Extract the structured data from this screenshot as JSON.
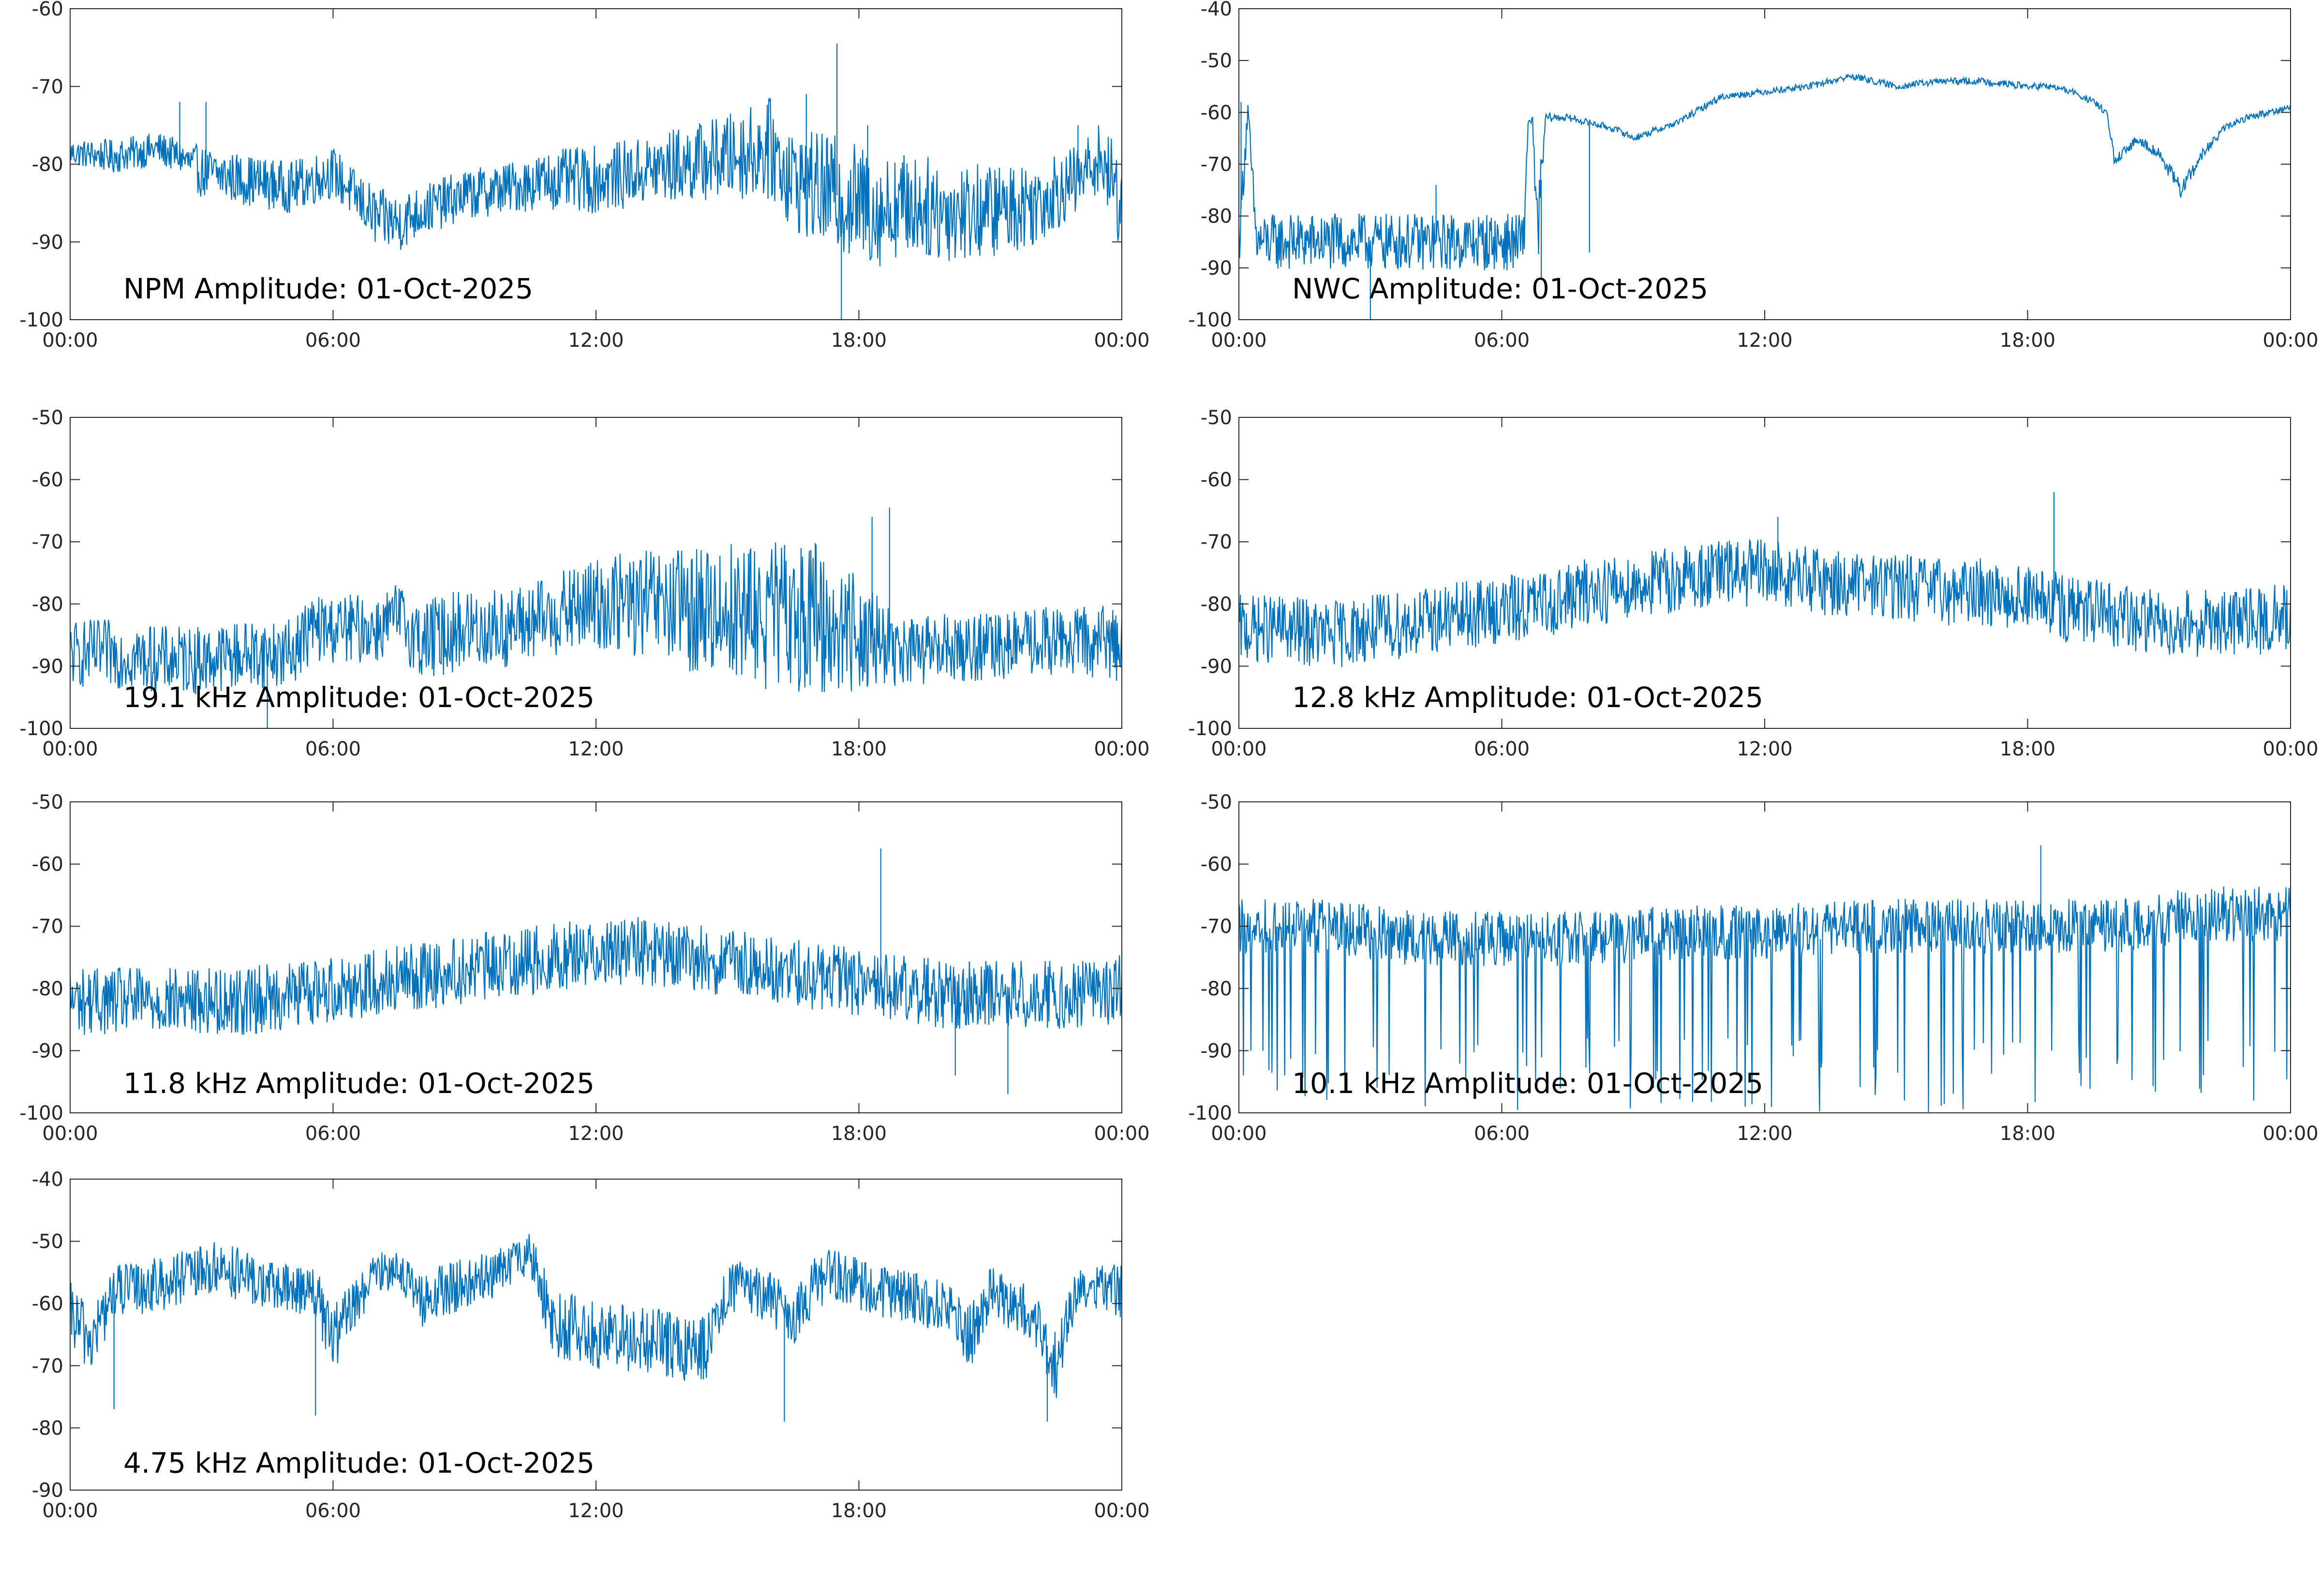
{
  "figure": {
    "date": "01-Oct-2025",
    "line_color": "#0072bd",
    "axis_color": "#262626"
  },
  "chart_data": [
    {
      "type": "line",
      "title": "NPM Amplitude: 01-Oct-2025",
      "xlabel": "",
      "ylabel": "",
      "xlim": [
        0,
        24
      ],
      "ylim": [
        -100,
        -60
      ],
      "yticks": [
        -100,
        -90,
        -80,
        -70,
        -60
      ],
      "xtick_labels": [
        "00:00",
        "06:00",
        "12:00",
        "18:00",
        "00:00"
      ],
      "grid": false,
      "series": [
        {
          "name": "NPM",
          "envelope_hours": [
            0,
            1,
            2,
            2.5,
            3,
            4,
            5,
            6,
            6.5,
            7,
            7.5,
            8,
            9,
            10,
            11,
            12,
            13,
            14,
            15,
            16,
            16.5,
            17,
            17.5,
            18,
            18.5,
            19,
            20,
            21,
            22,
            23,
            23.5,
            24
          ],
          "center": [
            -78.5,
            -79,
            -78,
            -79,
            -81,
            -82,
            -83,
            -81,
            -84,
            -87,
            -87.5,
            -86,
            -84,
            -83,
            -82,
            -82,
            -81,
            -80,
            -79,
            -78,
            -82,
            -83,
            -84,
            -85,
            -86,
            -85,
            -86,
            -86,
            -85,
            -82,
            -79,
            -85
          ],
          "spread": [
            1.5,
            2,
            2,
            2,
            3,
            3,
            3,
            3,
            3,
            3.5,
            3.5,
            3,
            3,
            3,
            3.5,
            4,
            4,
            4.5,
            5,
            6,
            6,
            6.5,
            7,
            7,
            6.5,
            6,
            6,
            5.5,
            5,
            4,
            4,
            6
          ],
          "spikes": [
            [
              2.5,
              -72
            ],
            [
              3.1,
              -72
            ],
            [
              17.5,
              -64.5
            ],
            [
              17.6,
              -100
            ],
            [
              18.2,
              -75
            ],
            [
              16.8,
              -71
            ],
            [
              23.0,
              -75
            ]
          ]
        }
      ]
    },
    {
      "type": "line",
      "title": "NWC Amplitude: 01-Oct-2025",
      "xlabel": "",
      "ylabel": "",
      "xlim": [
        0,
        24
      ],
      "ylim": [
        -100,
        -40
      ],
      "yticks": [
        -100,
        -90,
        -80,
        -70,
        -60,
        -50,
        -40
      ],
      "xtick_labels": [
        "00:00",
        "06:00",
        "12:00",
        "18:00",
        "00:00"
      ],
      "grid": false,
      "series": [
        {
          "name": "NWC",
          "envelope_hours": [
            0,
            0.2,
            0.4,
            1,
            2,
            3,
            4,
            5,
            6,
            6.5,
            6.6,
            6.7,
            6.8,
            7,
            7.5,
            8,
            8.5,
            8.8,
            9,
            10,
            11,
            12,
            13,
            14,
            15,
            16,
            17,
            18,
            18.5,
            19,
            19.5,
            19.8,
            20,
            20.5,
            21,
            21.5,
            22,
            22.5,
            23,
            24
          ],
          "center": [
            -85,
            -60,
            -85,
            -85,
            -85,
            -85,
            -85,
            -85,
            -85,
            -85,
            -62,
            -61,
            -85,
            -61,
            -61,
            -62,
            -63,
            -64,
            -65,
            -62,
            -57,
            -56,
            -55,
            -53,
            -55,
            -54,
            -54,
            -55,
            -55,
            -56,
            -58,
            -60,
            -70,
            -65,
            -68,
            -75,
            -68,
            -63,
            -61,
            -59
          ],
          "spread": [
            5,
            3,
            5,
            5,
            5,
            5,
            5,
            5,
            5,
            5,
            1,
            1,
            8,
            0.8,
            0.6,
            0.6,
            0.6,
            0.6,
            0.6,
            0.6,
            0.6,
            0.6,
            0.6,
            0.6,
            0.6,
            0.6,
            0.6,
            0.6,
            0.6,
            0.6,
            0.6,
            0.6,
            1.5,
            0.8,
            1,
            1.5,
            1,
            0.6,
            0.6,
            0.6
          ],
          "spikes": [
            [
              0.05,
              -58
            ],
            [
              4.5,
              -74
            ],
            [
              6.9,
              -92
            ],
            [
              8.0,
              -87
            ],
            [
              3.0,
              -100
            ]
          ]
        }
      ]
    },
    {
      "type": "line",
      "title": "19.1 kHz Amplitude: 01-Oct-2025",
      "xlabel": "",
      "ylabel": "",
      "xlim": [
        0,
        24
      ],
      "ylim": [
        -100,
        -50
      ],
      "yticks": [
        -100,
        -90,
        -80,
        -70,
        -60,
        -50
      ],
      "xtick_labels": [
        "00:00",
        "06:00",
        "12:00",
        "18:00",
        "00:00"
      ],
      "grid": false,
      "series": [
        {
          "name": "19.1 kHz",
          "envelope_hours": [
            0,
            1,
            2,
            3,
            4,
            5,
            5.5,
            6,
            7,
            7.5,
            8,
            9,
            10,
            11,
            12,
            13,
            14,
            15,
            16,
            17,
            17.5,
            18,
            18.5,
            19,
            20,
            21,
            22,
            23,
            24
          ],
          "center": [
            -88,
            -88,
            -89,
            -89,
            -88,
            -88,
            -84,
            -84,
            -84,
            -82,
            -86,
            -84,
            -84,
            -82,
            -80,
            -80,
            -81,
            -81,
            -82,
            -82,
            -84,
            -84,
            -86,
            -88,
            -87,
            -87,
            -86,
            -86,
            -86
          ],
          "spread": [
            5,
            5,
            5,
            5,
            5,
            5,
            5,
            5,
            5,
            5,
            6,
            6,
            6,
            6,
            7,
            8,
            9,
            10,
            11,
            11,
            10,
            9,
            6,
            5,
            5,
            5,
            5,
            5,
            6
          ],
          "spikes": [
            [
              18.7,
              -64.5
            ],
            [
              18.3,
              -66
            ],
            [
              4.5,
              -100
            ]
          ]
        }
      ]
    },
    {
      "type": "line",
      "title": "12.8 kHz Amplitude: 01-Oct-2025",
      "xlabel": "",
      "ylabel": "",
      "xlim": [
        0,
        24
      ],
      "ylim": [
        -100,
        -50
      ],
      "yticks": [
        -100,
        -90,
        -80,
        -70,
        -60,
        -50
      ],
      "xtick_labels": [
        "00:00",
        "06:00",
        "12:00",
        "18:00",
        "00:00"
      ],
      "grid": false,
      "series": [
        {
          "name": "12.8 kHz",
          "envelope_hours": [
            0,
            1,
            2,
            3,
            4,
            5,
            6,
            7,
            8,
            9,
            10,
            11,
            12,
            13,
            14,
            15,
            16,
            17,
            18,
            19,
            20,
            21,
            22,
            23,
            24
          ],
          "center": [
            -84,
            -84,
            -85,
            -84,
            -83,
            -82,
            -81,
            -80,
            -78,
            -77,
            -76,
            -75,
            -75,
            -76,
            -77,
            -77,
            -78,
            -78,
            -79,
            -81,
            -82,
            -83,
            -83,
            -83,
            -82
          ],
          "spread": [
            5,
            5,
            5,
            5,
            5,
            5,
            5,
            5,
            5,
            5,
            5,
            5,
            5,
            5,
            5,
            5,
            5,
            5,
            5,
            5,
            5,
            5,
            5,
            5,
            5
          ],
          "spikes": [
            [
              18.6,
              -62
            ],
            [
              12.3,
              -66
            ]
          ]
        }
      ]
    },
    {
      "type": "line",
      "title": "11.8 kHz Amplitude: 01-Oct-2025",
      "xlabel": "",
      "ylabel": "",
      "xlim": [
        0,
        24
      ],
      "ylim": [
        -100,
        -50
      ],
      "yticks": [
        -100,
        -90,
        -80,
        -70,
        -60,
        -50
      ],
      "xtick_labels": [
        "00:00",
        "06:00",
        "12:00",
        "18:00",
        "00:00"
      ],
      "grid": false,
      "series": [
        {
          "name": "11.8 kHz",
          "envelope_hours": [
            0,
            1,
            2,
            3,
            4,
            5,
            6,
            7,
            8,
            9,
            10,
            11,
            12,
            13,
            14,
            15,
            16,
            17,
            18,
            19,
            20,
            21,
            22,
            23,
            24
          ],
          "center": [
            -82,
            -82,
            -82,
            -82,
            -82,
            -81,
            -80,
            -79,
            -78,
            -77,
            -76,
            -75,
            -74,
            -74,
            -75,
            -76,
            -77,
            -78,
            -79,
            -80,
            -81,
            -81,
            -81,
            -81,
            -80
          ],
          "spread": [
            5,
            5,
            5,
            5,
            5,
            5,
            5,
            5,
            5,
            5,
            5,
            5,
            5,
            5,
            5,
            5,
            5,
            5,
            5,
            5,
            5,
            5,
            5,
            5,
            5
          ],
          "spikes": [
            [
              18.5,
              -57.5
            ],
            [
              20.2,
              -94
            ],
            [
              21.4,
              -97
            ]
          ]
        }
      ]
    },
    {
      "type": "line",
      "title": "10.1 kHz Amplitude: 01-Oct-2025",
      "xlabel": "",
      "ylabel": "",
      "xlim": [
        0,
        24
      ],
      "ylim": [
        -100,
        -50
      ],
      "yticks": [
        -100,
        -90,
        -80,
        -70,
        -60,
        -50
      ],
      "xtick_labels": [
        "00:00",
        "06:00",
        "12:00",
        "18:00",
        "00:00"
      ],
      "grid": false,
      "series": [
        {
          "name": "10.1 kHz",
          "envelope_hours": [
            0,
            2,
            4,
            6,
            8,
            10,
            12,
            14,
            16,
            18,
            20,
            22,
            24
          ],
          "center": [
            -70,
            -70,
            -72,
            -72,
            -72,
            -71,
            -71,
            -70,
            -70,
            -70,
            -70,
            -68,
            -68
          ],
          "spread": [
            4,
            4,
            4,
            4,
            4,
            4,
            4,
            4,
            4,
            4,
            4,
            4,
            4
          ],
          "dropout_floor": -100,
          "spikes": [
            [
              18.3,
              -57
            ]
          ]
        }
      ]
    },
    {
      "type": "line",
      "title": "4.75 kHz Amplitude: 01-Oct-2025",
      "xlabel": "",
      "ylabel": "",
      "xlim": [
        0,
        24
      ],
      "ylim": [
        -90,
        -40
      ],
      "yticks": [
        -90,
        -80,
        -70,
        -60,
        -50,
        -40
      ],
      "xtick_labels": [
        "00:00",
        "06:00",
        "12:00",
        "18:00",
        "00:00"
      ],
      "grid": false,
      "series": [
        {
          "name": "4.75 kHz",
          "envelope_hours": [
            0,
            0.5,
            1,
            2,
            3,
            3.5,
            4,
            5,
            5.5,
            6,
            6.3,
            7,
            7.5,
            8,
            8.5,
            9,
            9.5,
            10,
            10.5,
            11,
            12,
            13,
            14,
            14.5,
            15,
            16,
            16.5,
            17,
            17.5,
            18,
            19,
            20,
            20.5,
            21,
            22,
            22.5,
            23,
            24
          ],
          "center": [
            -62,
            -66,
            -58,
            -57,
            -55,
            -54,
            -56,
            -58,
            -57,
            -66,
            -62,
            -55,
            -54,
            -60,
            -58,
            -57,
            -56,
            -54,
            -52,
            -63,
            -65,
            -66,
            -67,
            -67,
            -57,
            -59,
            -63,
            -57,
            -55,
            -57,
            -59,
            -60,
            -66,
            -58,
            -62,
            -70,
            -57,
            -58
          ],
          "spread": [
            5,
            5,
            4,
            4,
            4,
            4,
            4,
            4,
            4,
            5,
            4,
            3,
            3,
            4,
            4,
            4,
            4,
            3,
            3,
            5,
            5,
            5,
            5,
            5,
            4,
            4,
            4,
            4,
            4,
            4,
            4,
            4,
            5,
            4,
            4,
            5,
            3,
            4
          ],
          "spikes": [
            [
              5.6,
              -78
            ],
            [
              16.3,
              -79
            ],
            [
              22.3,
              -79
            ],
            [
              1,
              -77
            ]
          ]
        }
      ]
    }
  ]
}
